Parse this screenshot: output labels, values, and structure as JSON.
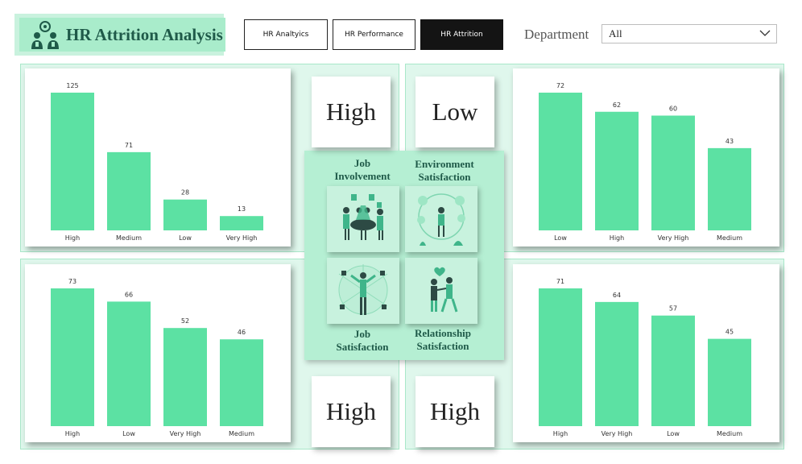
{
  "header": {
    "title": "HR Attrition Analysis",
    "title_icon": "people-group-icon"
  },
  "nav": {
    "buttons": [
      {
        "label": "HR Analtyics",
        "active": false
      },
      {
        "label": "HR Performance",
        "active": false
      },
      {
        "label": "HR Attrition",
        "active": true
      }
    ]
  },
  "filter": {
    "label": "Department",
    "value": "All"
  },
  "kpis": {
    "job_involvement": "High",
    "environment_satisfaction": "Low",
    "job_satisfaction": "High",
    "relationship_satisfaction": "High"
  },
  "center": {
    "job_involvement_line1": "Job",
    "job_involvement_line2": "Involvement",
    "environment_line1": "Environment",
    "environment_line2": "Satisfaction",
    "job_satisfaction_line1": "Job",
    "job_satisfaction_line2": "Satisfaction",
    "relationship_line1": "Relationship",
    "relationship_line2": "Satisfaction"
  },
  "colors": {
    "bar": "#5ce1a3",
    "accent_dark": "#1f5a49",
    "panel": "#b5efd3"
  },
  "chart_data": [
    {
      "id": "job-involvement",
      "type": "bar",
      "categories": [
        "High",
        "Medium",
        "Low",
        "Very High"
      ],
      "values": [
        125,
        71,
        28,
        13
      ]
    },
    {
      "id": "environment-satisfaction",
      "type": "bar",
      "categories": [
        "Low",
        "High",
        "Very High",
        "Medium"
      ],
      "values": [
        72,
        62,
        60,
        43
      ]
    },
    {
      "id": "job-satisfaction",
      "type": "bar",
      "categories": [
        "High",
        "Low",
        "Very High",
        "Medium"
      ],
      "values": [
        73,
        66,
        52,
        46
      ]
    },
    {
      "id": "relationship-satisfaction",
      "type": "bar",
      "categories": [
        "High",
        "Very High",
        "Low",
        "Medium"
      ],
      "values": [
        71,
        64,
        57,
        45
      ]
    }
  ]
}
